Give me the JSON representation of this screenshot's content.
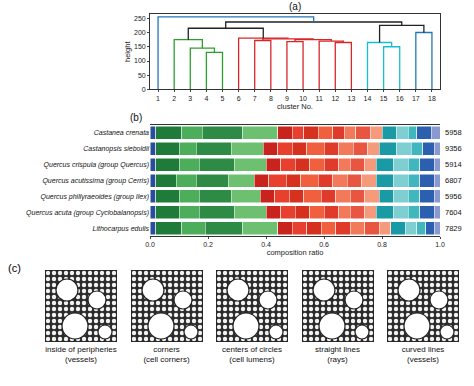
{
  "chart_data": [
    {
      "type": "dendrogram",
      "panel": "(a)",
      "x_label": "cluster No.",
      "y_label": "height",
      "xlim": [
        0.5,
        18.5
      ],
      "xticks": [
        1,
        2,
        3,
        4,
        5,
        6,
        7,
        8,
        9,
        10,
        11,
        12,
        13,
        14,
        15,
        16,
        17,
        18
      ],
      "ylim": [
        0,
        265
      ],
      "yticks": [
        0,
        50,
        100,
        150,
        200,
        250
      ],
      "links": [
        {
          "x": [
            4,
            4,
            5,
            5
          ],
          "y": [
            0,
            130,
            130,
            0
          ],
          "color": "#2ca02c"
        },
        {
          "x": [
            3,
            3,
            4.5,
            4.5
          ],
          "y": [
            0,
            145,
            145,
            130
          ],
          "color": "#2ca02c"
        },
        {
          "x": [
            2,
            2,
            3.75,
            3.75
          ],
          "y": [
            0,
            175,
            175,
            145
          ],
          "color": "#2ca02c"
        },
        {
          "x": [
            12,
            12,
            13,
            13
          ],
          "y": [
            0,
            165,
            165,
            0
          ],
          "color": "#d62728"
        },
        {
          "x": [
            11,
            11,
            12.5,
            12.5
          ],
          "y": [
            0,
            170,
            170,
            165
          ],
          "color": "#d62728"
        },
        {
          "x": [
            9,
            9,
            10,
            10
          ],
          "y": [
            0,
            168,
            168,
            0
          ],
          "color": "#d62728"
        },
        {
          "x": [
            7,
            7,
            8,
            8
          ],
          "y": [
            0,
            172,
            172,
            0
          ],
          "color": "#d62728"
        },
        {
          "x": [
            9.5,
            9.5,
            11.75,
            11.75
          ],
          "y": [
            168,
            175,
            175,
            170
          ],
          "color": "#d62728"
        },
        {
          "x": [
            7.5,
            7.5,
            10.625,
            10.625
          ],
          "y": [
            172,
            178,
            178,
            175
          ],
          "color": "#d62728"
        },
        {
          "x": [
            6,
            6,
            9.0625,
            9.0625
          ],
          "y": [
            0,
            180,
            180,
            178
          ],
          "color": "#d62728"
        },
        {
          "x": [
            15,
            15,
            16,
            16
          ],
          "y": [
            0,
            150,
            150,
            0
          ],
          "color": "#17becf"
        },
        {
          "x": [
            14,
            14,
            15.5,
            15.5
          ],
          "y": [
            0,
            165,
            165,
            150
          ],
          "color": "#17becf"
        },
        {
          "x": [
            17,
            17,
            18,
            18
          ],
          "y": [
            0,
            200,
            200,
            0
          ],
          "color": "#1f77b4"
        },
        {
          "x": [
            2.875,
            2.875,
            7.53,
            7.53
          ],
          "y": [
            175,
            215,
            215,
            180
          ],
          "color": "#222222"
        },
        {
          "x": [
            14.75,
            14.75,
            17.5,
            17.5
          ],
          "y": [
            165,
            225,
            225,
            200
          ],
          "color": "#222222"
        },
        {
          "x": [
            5.2,
            5.2,
            16.125,
            16.125
          ],
          "y": [
            215,
            237,
            237,
            225
          ],
          "color": "#222222"
        },
        {
          "x": [
            1,
            1,
            10.66,
            10.66
          ],
          "y": [
            0,
            255,
            255,
            237
          ],
          "color": "#1f77b4"
        }
      ]
    },
    {
      "type": "bar",
      "panel": "(b)",
      "orientation": "horizontal",
      "stacked": true,
      "x_label": "composition ratio",
      "categories": [
        "Castanea crenata",
        "Castanopsis sieboldii",
        "Quercus crispula (group Quercus)",
        "Quercus acutissima (group Cerris)",
        "Quercus phillyraeoides (group Ilex)",
        "Quercus acuta (group Cyclobalanopsis)",
        "Lithocarpus edulis"
      ],
      "totals": [
        5958,
        9356,
        5914,
        6807,
        5956,
        7604,
        7829
      ],
      "xlim": [
        0,
        1
      ],
      "xticks": [
        {
          "value": 0,
          "label": "0.0"
        },
        0.2,
        0.4,
        0.6,
        0.8,
        {
          "value": 1,
          "label": "1.0"
        }
      ],
      "series": [
        {
          "color": "#2a4d9b",
          "values": [
            0.02,
            0.02,
            0.02,
            0.02,
            0.02,
            0.02,
            0.02
          ]
        },
        {
          "color": "#1e7b3a",
          "values": [
            0.09,
            0.08,
            0.08,
            0.07,
            0.08,
            0.08,
            0.09
          ]
        },
        {
          "color": "#4cae5b",
          "values": [
            0.07,
            0.06,
            0.07,
            0.07,
            0.07,
            0.07,
            0.08
          ]
        },
        {
          "color": "#2e8b45",
          "values": [
            0.14,
            0.12,
            0.12,
            0.11,
            0.11,
            0.12,
            0.13
          ]
        },
        {
          "color": "#6cc070",
          "values": [
            0.12,
            0.11,
            0.11,
            0.09,
            0.1,
            0.11,
            0.12
          ]
        },
        {
          "color": "#c8241d",
          "values": [
            0.05,
            0.05,
            0.05,
            0.05,
            0.05,
            0.05,
            0.05
          ]
        },
        {
          "color": "#e8402f",
          "values": [
            0.04,
            0.05,
            0.05,
            0.06,
            0.05,
            0.05,
            0.05
          ]
        },
        {
          "color": "#d6301f",
          "values": [
            0.05,
            0.05,
            0.05,
            0.05,
            0.05,
            0.05,
            0.05
          ]
        },
        {
          "color": "#f0603f",
          "values": [
            0.05,
            0.06,
            0.05,
            0.06,
            0.06,
            0.05,
            0.05
          ]
        },
        {
          "color": "#e03a2a",
          "values": [
            0.04,
            0.05,
            0.05,
            0.05,
            0.05,
            0.05,
            0.05
          ]
        },
        {
          "color": "#f27a5a",
          "values": [
            0.04,
            0.05,
            0.04,
            0.05,
            0.05,
            0.04,
            0.05
          ]
        },
        {
          "color": "#e85540",
          "values": [
            0.05,
            0.05,
            0.05,
            0.05,
            0.05,
            0.05,
            0.05
          ]
        },
        {
          "color": "#f59a7a",
          "values": [
            0.04,
            0.04,
            0.04,
            0.05,
            0.05,
            0.04,
            0.04
          ]
        },
        {
          "color": "#1a9aa5",
          "values": [
            0.05,
            0.06,
            0.06,
            0.06,
            0.05,
            0.06,
            0.05
          ]
        },
        {
          "color": "#7fcfd2",
          "values": [
            0.04,
            0.05,
            0.05,
            0.05,
            0.05,
            0.05,
            0.04
          ]
        },
        {
          "color": "#40b7bd",
          "values": [
            0.03,
            0.04,
            0.04,
            0.04,
            0.04,
            0.04,
            0.03
          ]
        },
        {
          "color": "#2d5fb0",
          "values": [
            0.05,
            0.04,
            0.05,
            0.05,
            0.05,
            0.05,
            0.03
          ]
        },
        {
          "color": "#8a9ad0",
          "values": [
            0.03,
            0.02,
            0.02,
            0.02,
            0.02,
            0.02,
            0.02
          ]
        }
      ]
    }
  ],
  "panel_c": {
    "label": "(c)",
    "captions": [
      [
        "inside of peripheries",
        "(vessels)"
      ],
      [
        "corners",
        "(cell corners)"
      ],
      [
        "centers of circles",
        "(cell lumens)"
      ],
      [
        "straight lines",
        "(rays)"
      ],
      [
        "curved lines",
        "(vessels)"
      ]
    ]
  }
}
